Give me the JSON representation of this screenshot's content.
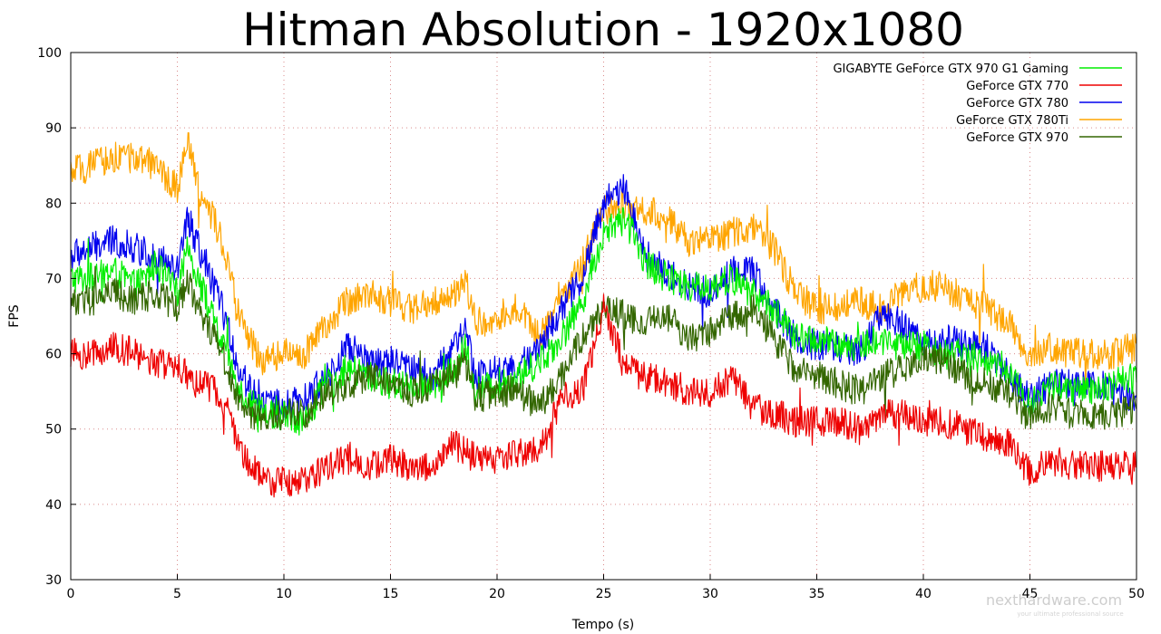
{
  "chart_data": {
    "type": "line",
    "title": "Hitman Absolution - 1920x1080",
    "xlabel": "Tempo (s)",
    "ylabel": "FPS",
    "xlim": [
      0,
      50
    ],
    "ylim": [
      30,
      100
    ],
    "xticks": [
      0,
      5,
      10,
      15,
      20,
      25,
      30,
      35,
      40,
      45,
      50
    ],
    "yticks": [
      30,
      40,
      50,
      60,
      70,
      80,
      90,
      100
    ],
    "grid": true,
    "legend_position": "top-right",
    "series": [
      {
        "name": "GIGABYTE GeForce GTX 970 G1 Gaming",
        "color": "#00ee00",
        "points": [
          [
            0,
            70
          ],
          [
            1,
            70
          ],
          [
            2,
            71
          ],
          [
            3,
            69
          ],
          [
            3.5,
            70
          ],
          [
            4,
            72
          ],
          [
            5,
            68
          ],
          [
            5.5,
            74
          ],
          [
            6,
            70
          ],
          [
            7,
            62
          ],
          [
            8,
            55
          ],
          [
            9,
            52
          ],
          [
            10,
            52
          ],
          [
            11,
            51
          ],
          [
            12,
            56
          ],
          [
            13,
            58
          ],
          [
            14,
            57
          ],
          [
            15,
            56
          ],
          [
            16,
            56
          ],
          [
            17,
            56
          ],
          [
            18,
            58
          ],
          [
            18.5,
            61
          ],
          [
            19,
            55
          ],
          [
            20,
            56
          ],
          [
            21,
            57
          ],
          [
            22,
            59
          ],
          [
            23,
            62
          ],
          [
            24,
            67
          ],
          [
            25,
            76
          ],
          [
            26,
            78
          ],
          [
            27,
            72
          ],
          [
            28,
            70
          ],
          [
            29,
            69
          ],
          [
            30,
            69
          ],
          [
            31,
            70
          ],
          [
            32,
            68
          ],
          [
            33,
            66
          ],
          [
            34,
            62
          ],
          [
            35,
            62
          ],
          [
            36,
            61
          ],
          [
            37,
            61
          ],
          [
            38,
            62
          ],
          [
            39,
            61
          ],
          [
            40,
            61
          ],
          [
            41,
            60
          ],
          [
            42,
            60
          ],
          [
            43,
            59
          ],
          [
            44,
            58
          ],
          [
            45,
            53
          ],
          [
            46,
            56
          ],
          [
            47,
            55
          ],
          [
            48,
            55
          ],
          [
            49,
            56
          ],
          [
            50,
            57
          ]
        ]
      },
      {
        "name": "GeForce GTX 770",
        "color": "#ee0000",
        "points": [
          [
            0,
            60
          ],
          [
            1,
            60
          ],
          [
            2,
            61
          ],
          [
            3,
            60
          ],
          [
            4,
            59
          ],
          [
            5,
            58
          ],
          [
            6,
            56
          ],
          [
            7,
            55
          ],
          [
            8,
            47
          ],
          [
            9,
            43
          ],
          [
            10,
            43
          ],
          [
            11,
            43
          ],
          [
            12,
            45
          ],
          [
            13,
            46
          ],
          [
            14,
            45
          ],
          [
            15,
            46
          ],
          [
            16,
            45
          ],
          [
            17,
            45
          ],
          [
            18,
            48
          ],
          [
            19,
            46
          ],
          [
            20,
            46
          ],
          [
            21,
            47
          ],
          [
            22,
            47
          ],
          [
            23,
            54
          ],
          [
            24,
            55
          ],
          [
            25,
            66
          ],
          [
            26,
            58
          ],
          [
            27,
            57
          ],
          [
            28,
            56
          ],
          [
            29,
            55
          ],
          [
            30,
            55
          ],
          [
            31,
            57
          ],
          [
            32,
            53
          ],
          [
            33,
            52
          ],
          [
            34,
            51
          ],
          [
            35,
            51
          ],
          [
            36,
            51
          ],
          [
            37,
            50
          ],
          [
            38,
            52
          ],
          [
            39,
            52
          ],
          [
            40,
            51
          ],
          [
            41,
            51
          ],
          [
            42,
            50
          ],
          [
            43,
            49
          ],
          [
            44,
            48
          ],
          [
            45,
            44
          ],
          [
            46,
            46
          ],
          [
            47,
            45
          ],
          [
            48,
            45
          ],
          [
            49,
            45
          ],
          [
            50,
            45
          ]
        ]
      },
      {
        "name": "GeForce GTX 780",
        "color": "#0000ee",
        "points": [
          [
            0,
            73
          ],
          [
            1,
            74
          ],
          [
            2,
            75
          ],
          [
            3,
            74
          ],
          [
            4,
            73
          ],
          [
            5,
            71
          ],
          [
            5.5,
            78
          ],
          [
            6,
            74
          ],
          [
            7,
            67
          ],
          [
            8,
            57
          ],
          [
            9,
            54
          ],
          [
            10,
            53
          ],
          [
            11,
            54
          ],
          [
            12,
            57
          ],
          [
            13,
            61
          ],
          [
            14,
            59
          ],
          [
            15,
            59
          ],
          [
            16,
            58
          ],
          [
            17,
            57
          ],
          [
            18,
            61
          ],
          [
            18.5,
            63
          ],
          [
            19,
            57
          ],
          [
            20,
            58
          ],
          [
            21,
            58
          ],
          [
            22,
            61
          ],
          [
            23,
            66
          ],
          [
            24,
            70
          ],
          [
            25,
            80
          ],
          [
            26,
            82
          ],
          [
            27,
            73
          ],
          [
            28,
            71
          ],
          [
            29,
            69
          ],
          [
            30,
            68
          ],
          [
            31,
            71
          ],
          [
            32,
            71
          ],
          [
            33,
            66
          ],
          [
            34,
            62
          ],
          [
            35,
            61
          ],
          [
            36,
            61
          ],
          [
            37,
            60
          ],
          [
            38,
            65
          ],
          [
            39,
            64
          ],
          [
            40,
            61
          ],
          [
            41,
            62
          ],
          [
            42,
            61
          ],
          [
            43,
            61
          ],
          [
            44,
            57
          ],
          [
            45,
            54
          ],
          [
            46,
            56
          ],
          [
            47,
            56
          ],
          [
            48,
            56
          ],
          [
            49,
            55
          ],
          [
            50,
            54
          ]
        ]
      },
      {
        "name": "GeForce GTX 780Ti",
        "color": "#ffa500",
        "points": [
          [
            0,
            84
          ],
          [
            1,
            85
          ],
          [
            2,
            86
          ],
          [
            3,
            86
          ],
          [
            4,
            85
          ],
          [
            5,
            82
          ],
          [
            5.5,
            88
          ],
          [
            6,
            82
          ],
          [
            7,
            76
          ],
          [
            8,
            64
          ],
          [
            9,
            59
          ],
          [
            10,
            60
          ],
          [
            11,
            60
          ],
          [
            12,
            64
          ],
          [
            13,
            67
          ],
          [
            14,
            68
          ],
          [
            15,
            67
          ],
          [
            16,
            66
          ],
          [
            17,
            67
          ],
          [
            18,
            68
          ],
          [
            18.5,
            70
          ],
          [
            19,
            64
          ],
          [
            20,
            65
          ],
          [
            21,
            66
          ],
          [
            22,
            62
          ],
          [
            23,
            67
          ],
          [
            24,
            72
          ],
          [
            25,
            79
          ],
          [
            26,
            80
          ],
          [
            27,
            79
          ],
          [
            28,
            78
          ],
          [
            29,
            75
          ],
          [
            30,
            75
          ],
          [
            31,
            76
          ],
          [
            32,
            77
          ],
          [
            33,
            74
          ],
          [
            34,
            68
          ],
          [
            35,
            66
          ],
          [
            36,
            66
          ],
          [
            37,
            67
          ],
          [
            38,
            66
          ],
          [
            39,
            68
          ],
          [
            40,
            69
          ],
          [
            41,
            69
          ],
          [
            42,
            67
          ],
          [
            43,
            66
          ],
          [
            44,
            64
          ],
          [
            45,
            59
          ],
          [
            46,
            61
          ],
          [
            47,
            60
          ],
          [
            48,
            60
          ],
          [
            49,
            60
          ],
          [
            50,
            61
          ]
        ]
      },
      {
        "name": "GeForce GTX 970",
        "color": "#336600",
        "points": [
          [
            0,
            67
          ],
          [
            1,
            67
          ],
          [
            2,
            68
          ],
          [
            3,
            67
          ],
          [
            4,
            68
          ],
          [
            5,
            66
          ],
          [
            5.5,
            70
          ],
          [
            6,
            66
          ],
          [
            7,
            61
          ],
          [
            8,
            53
          ],
          [
            9,
            51
          ],
          [
            10,
            52
          ],
          [
            11,
            52
          ],
          [
            12,
            55
          ],
          [
            13,
            56
          ],
          [
            14,
            57
          ],
          [
            15,
            56
          ],
          [
            16,
            55
          ],
          [
            17,
            56
          ],
          [
            18,
            57
          ],
          [
            18.5,
            59
          ],
          [
            19,
            54
          ],
          [
            20,
            55
          ],
          [
            21,
            55
          ],
          [
            22,
            53
          ],
          [
            23,
            57
          ],
          [
            24,
            62
          ],
          [
            25,
            66
          ],
          [
            26,
            65
          ],
          [
            27,
            64
          ],
          [
            28,
            65
          ],
          [
            29,
            62
          ],
          [
            30,
            63
          ],
          [
            31,
            65
          ],
          [
            32,
            66
          ],
          [
            33,
            62
          ],
          [
            34,
            58
          ],
          [
            35,
            57
          ],
          [
            36,
            56
          ],
          [
            37,
            55
          ],
          [
            38,
            57
          ],
          [
            39,
            58
          ],
          [
            40,
            59
          ],
          [
            41,
            59
          ],
          [
            42,
            57
          ],
          [
            43,
            56
          ],
          [
            44,
            55
          ],
          [
            45,
            51
          ],
          [
            46,
            53
          ],
          [
            47,
            52
          ],
          [
            48,
            52
          ],
          [
            49,
            52
          ],
          [
            50,
            53
          ]
        ]
      }
    ]
  },
  "watermark": {
    "text": "nexthardware.com",
    "tagline": "your ultimate professional source"
  }
}
